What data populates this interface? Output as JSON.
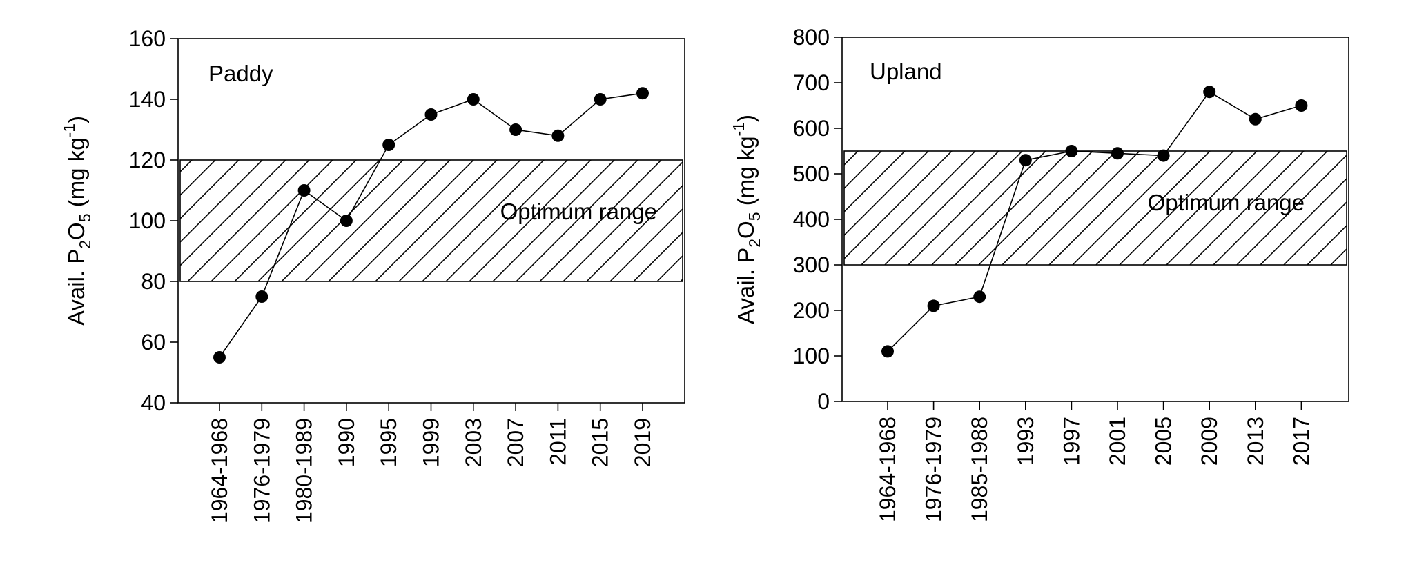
{
  "chart_data": [
    {
      "type": "line",
      "panel_label": "Paddy",
      "ylabel": {
        "prefix": "Avail. P",
        "sub1": "2",
        "mid": "O",
        "sub2": "5",
        "unit_open": " (mg kg",
        "sup": "-1",
        "unit_close": ")"
      },
      "ylim": [
        40,
        160
      ],
      "yticks": [
        40,
        60,
        80,
        100,
        120,
        140,
        160
      ],
      "categories": [
        "1964-1968",
        "1976-1979",
        "1980-1989",
        "1990",
        "1995",
        "1999",
        "2003",
        "2007",
        "2011",
        "2015",
        "2019"
      ],
      "values": [
        55,
        75,
        110,
        100,
        125,
        135,
        140,
        130,
        128,
        140,
        142
      ],
      "optimum_range": [
        80,
        120
      ],
      "optimum_label": "Optimum range",
      "grid": false,
      "marker": "filled-circle"
    },
    {
      "type": "line",
      "panel_label": "Upland",
      "ylabel": {
        "prefix": "Avail. P",
        "sub1": "2",
        "mid": "O",
        "sub2": "5",
        "unit_open": " (mg kg",
        "sup": "-1",
        "unit_close": ")"
      },
      "ylim": [
        0,
        800
      ],
      "yticks": [
        0,
        100,
        200,
        300,
        400,
        500,
        600,
        700,
        800
      ],
      "categories": [
        "1964-1968",
        "1976-1979",
        "1985-1988",
        "1993",
        "1997",
        "2001",
        "2005",
        "2009",
        "2013",
        "2017"
      ],
      "values": [
        110,
        210,
        230,
        530,
        550,
        545,
        540,
        680,
        620,
        650
      ],
      "optimum_range": [
        300,
        550
      ],
      "optimum_label": "Optimum range",
      "grid": false,
      "marker": "filled-circle"
    }
  ]
}
